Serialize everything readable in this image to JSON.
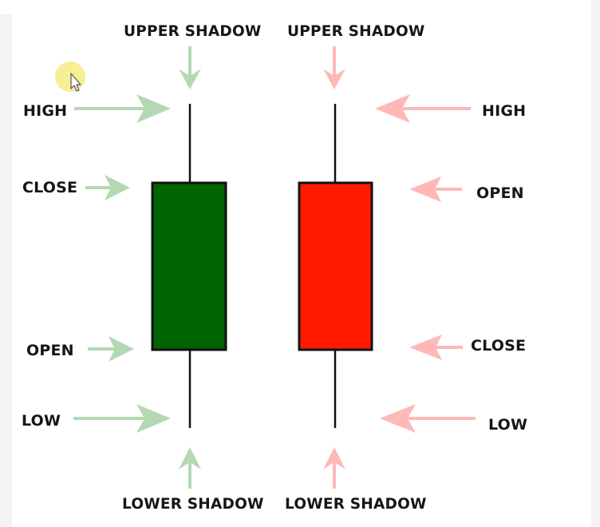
{
  "colors": {
    "bullish_body": "#006400",
    "bearish_body": "#ff1a00",
    "bullish_arrow": "#b4d8b4",
    "bearish_arrow": "#ffb8b8",
    "wick": "#111111",
    "outline": "#111111"
  },
  "bullish_candle": {
    "labels": {
      "high": "HIGH",
      "close": "CLOSE",
      "open": "OPEN",
      "low": "LOW",
      "upper_shadow": "UPPER SHADOW",
      "lower_shadow": "LOWER SHADOW"
    }
  },
  "bearish_candle": {
    "labels": {
      "high": "HIGH",
      "open": "OPEN",
      "close": "CLOSE",
      "low": "LOW",
      "upper_shadow": "UPPER SHADOW",
      "lower_shadow": "LOWER SHADOW"
    }
  },
  "cursor": {
    "icon": "mouse-pointer-icon"
  }
}
